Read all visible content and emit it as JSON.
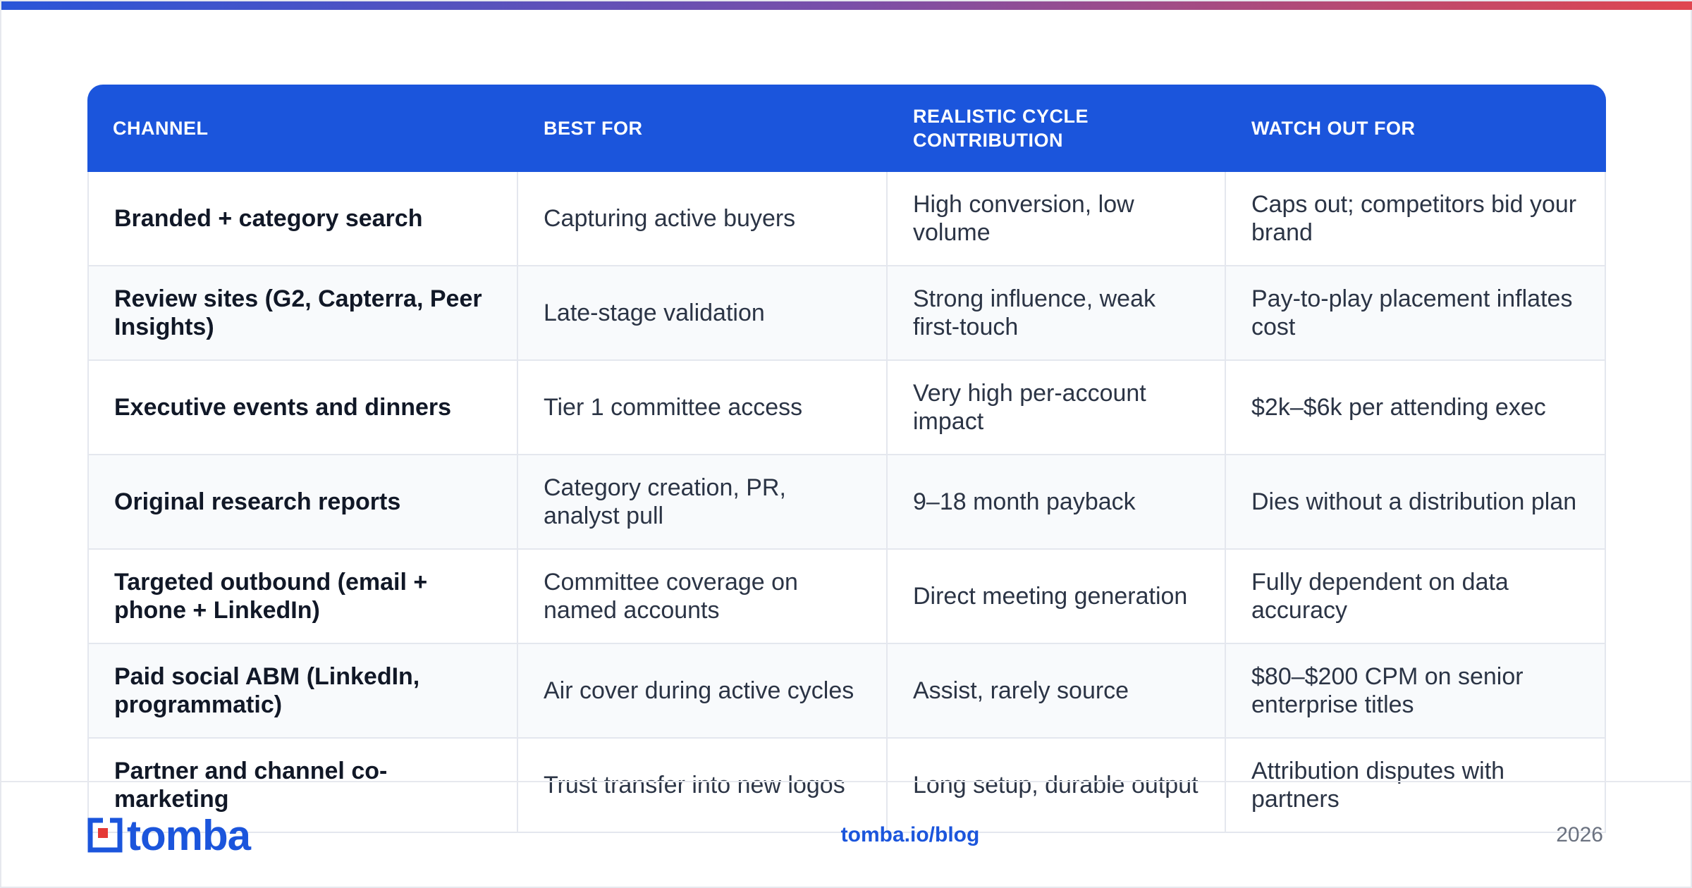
{
  "table": {
    "header": [
      "CHANNEL",
      "BEST FOR",
      "REALISTIC CYCLE CONTRIBUTION",
      "WATCH OUT FOR"
    ],
    "rows": [
      [
        "Branded + category search",
        "Capturing active buyers",
        "High conversion, low volume",
        "Caps out; competitors bid your brand"
      ],
      [
        "Review sites (G2, Capterra, Peer Insights)",
        "Late-stage validation",
        "Strong influence, weak first-touch",
        "Pay-to-play placement inflates cost"
      ],
      [
        "Executive events and dinners",
        "Tier 1 committee access",
        "Very high per-account impact",
        "$2k–$6k per attending exec"
      ],
      [
        "Original research reports",
        "Category creation, PR, analyst pull",
        "9–18 month payback",
        "Dies without a distribution plan"
      ],
      [
        "Targeted outbound (email + phone + LinkedIn)",
        "Committee coverage on named accounts",
        "Direct meeting generation",
        "Fully dependent on data accuracy"
      ],
      [
        "Paid social ABM (LinkedIn, programmatic)",
        "Air cover during active cycles",
        "Assist, rarely source",
        "$80–$200 CPM on senior enterprise titles"
      ],
      [
        "Partner and channel co-marketing",
        "Trust transfer into new logos",
        "Long setup, durable output",
        "Attribution disputes with partners"
      ]
    ]
  },
  "footer": {
    "logo": "tomba",
    "link": "tomba.io/blog",
    "year": "2026"
  }
}
